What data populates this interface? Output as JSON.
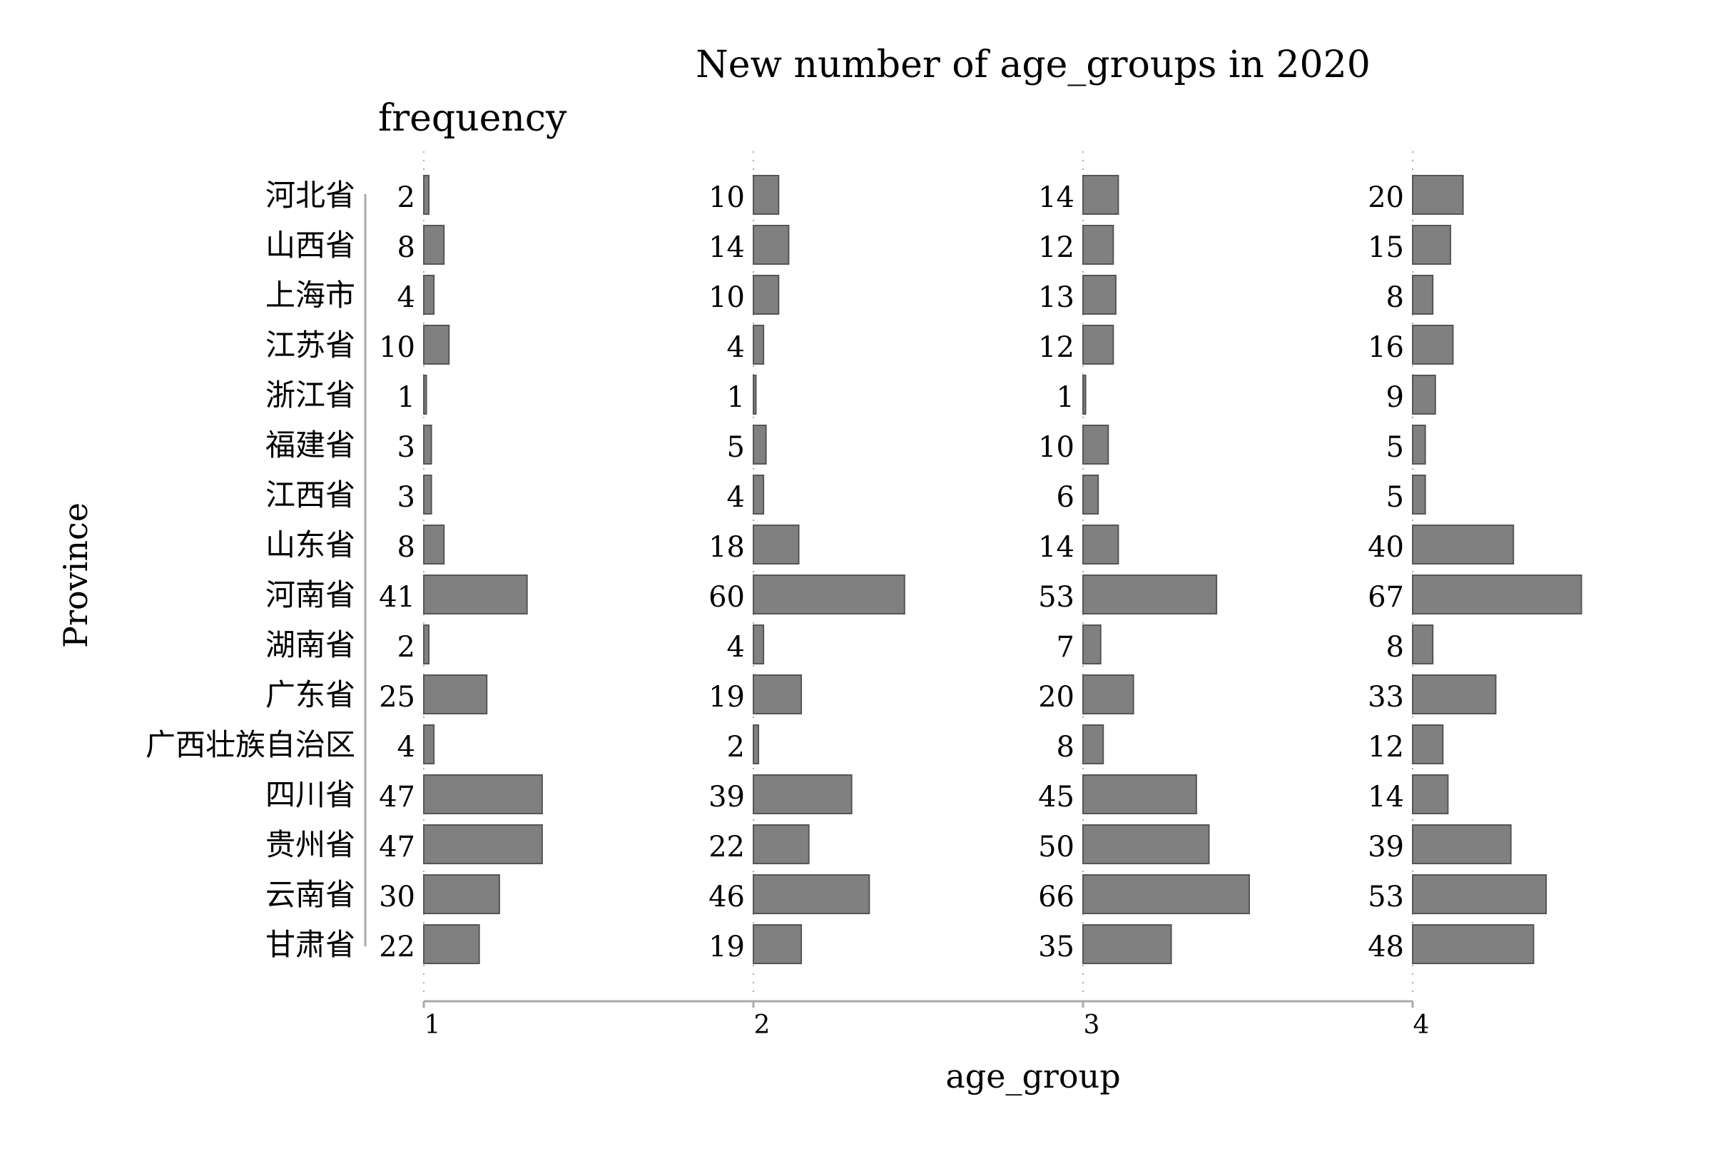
{
  "chart_data": {
    "type": "bar",
    "orientation": "horizontal-faceted",
    "title": "New number of age_groups in 2020",
    "value_label": "frequency",
    "ylabel": "Province",
    "xlabel": "age_group",
    "facet_ticks": [
      "1",
      "2",
      "3",
      "4"
    ],
    "categories": [
      "河北省",
      "山西省",
      "上海市",
      "江苏省",
      "浙江省",
      "福建省",
      "江西省",
      "山东省",
      "河南省",
      "湖南省",
      "广东省",
      "广西壮族自治区",
      "四川省",
      "贵州省",
      "云南省",
      "甘肃省"
    ],
    "series": [
      {
        "facet": "1",
        "values": [
          2,
          8,
          4,
          10,
          1,
          3,
          3,
          8,
          41,
          2,
          25,
          4,
          47,
          47,
          30,
          22
        ]
      },
      {
        "facet": "2",
        "values": [
          10,
          14,
          10,
          4,
          1,
          5,
          4,
          18,
          60,
          4,
          19,
          2,
          39,
          22,
          46,
          19
        ]
      },
      {
        "facet": "3",
        "values": [
          14,
          12,
          13,
          12,
          1,
          10,
          6,
          14,
          53,
          7,
          20,
          8,
          45,
          50,
          66,
          35
        ]
      },
      {
        "facet": "4",
        "values": [
          20,
          15,
          8,
          16,
          9,
          5,
          5,
          40,
          67,
          8,
          33,
          12,
          14,
          39,
          53,
          48
        ]
      }
    ],
    "bar_color": "#808080",
    "bar_edge_color": "#555555",
    "axis_color": "#aaaaaa"
  }
}
